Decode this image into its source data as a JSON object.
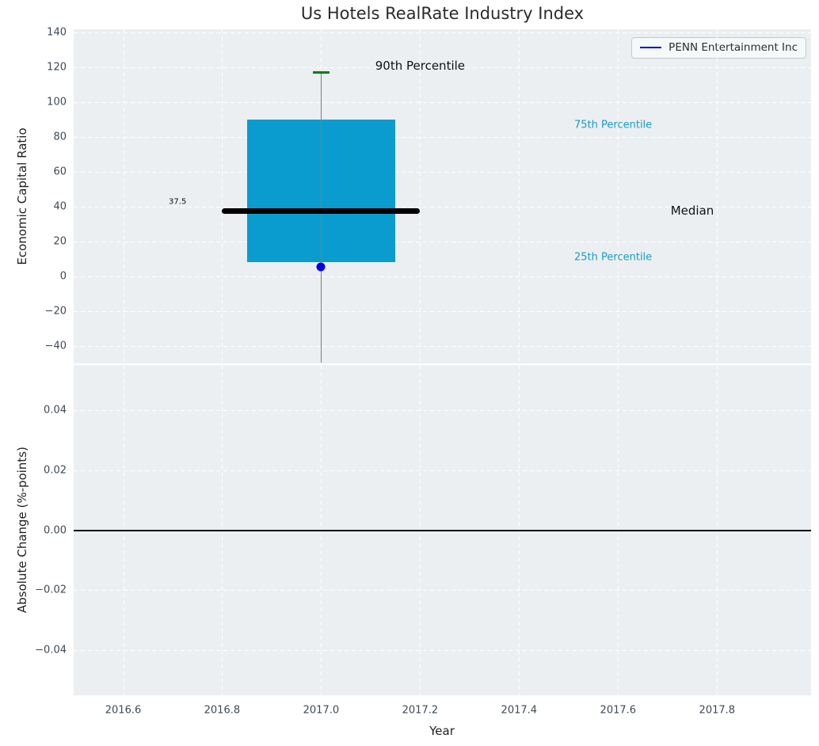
{
  "title": "Us Hotels RealRate Industry Index",
  "legend": {
    "label": "PENN Entertainment Inc",
    "line_color": "#0000dd"
  },
  "colors": {
    "figure_bg": "#ffffff",
    "axes_bg": "#eceff1",
    "grid": "#ffffff",
    "box_fill": "#0a9cce",
    "median_line": "#000000",
    "whisker": "#808080",
    "percentile_cap": "#008000",
    "company_marker": "#0000e0",
    "zero_line": "#000000",
    "tick_text": "#3e4a57",
    "percentile_text": "#1a9bc9"
  },
  "chart_data": [
    {
      "type": "boxplot",
      "title": "Us Hotels RealRate Industry Index",
      "ylabel": "Economic Capital Ratio",
      "xlim": [
        2016.5,
        2017.99
      ],
      "ylim": [
        -50,
        142
      ],
      "yticks": [
        140,
        120,
        100,
        80,
        60,
        40,
        20,
        0,
        -20,
        -40
      ],
      "ytick_labels": [
        "140",
        "120",
        "100",
        "80",
        "60",
        "40",
        "20",
        "0",
        "−20",
        "−40"
      ],
      "grid": true,
      "legend_position": "upper right",
      "legend_entries": [
        "PENN Entertainment Inc"
      ],
      "box": {
        "x": 2017.0,
        "box_halfwidth": 0.15,
        "median_halfwidth": 0.2,
        "cap_halfwidth": 0.0175,
        "q1": 8,
        "q3": 90,
        "median": 37.5,
        "p90": 117,
        "whisker_low": -49.5,
        "company_point": {
          "name": "PENN Entertainment Inc",
          "x": 2017.0,
          "y": 5.5
        }
      },
      "annotations": [
        {
          "text": "90th Percentile",
          "x": 2017.2,
          "y": 121,
          "color": "#111111",
          "size": 15
        },
        {
          "text": "75th Percentile",
          "x": 2017.59,
          "y": 87,
          "color": "#1a9bc9",
          "size": 13
        },
        {
          "text": "Median",
          "x": 2017.75,
          "y": 37.7,
          "color": "#111111",
          "size": 15
        },
        {
          "text": "25th Percentile",
          "x": 2017.59,
          "y": 11,
          "color": "#1a9bc9",
          "size": 13
        },
        {
          "text": "37.5",
          "x": 2016.71,
          "y": 42.7,
          "color": "#111111",
          "size": 10
        }
      ]
    },
    {
      "type": "line",
      "ylabel": "Absolute Change (%-points)",
      "xlabel": "Year",
      "xlim": [
        2016.5,
        2017.99
      ],
      "ylim": [
        -0.055,
        0.055
      ],
      "yticks": [
        0.04,
        0.02,
        0.0,
        -0.02,
        -0.04
      ],
      "ytick_labels": [
        "0.04",
        "0.02",
        "0.00",
        "−0.02",
        "−0.04"
      ],
      "xticks": [
        2016.6,
        2016.8,
        2017.0,
        2017.2,
        2017.4,
        2017.6,
        2017.8
      ],
      "xtick_labels": [
        "2016.6",
        "2016.8",
        "2017.0",
        "2017.2",
        "2017.4",
        "2017.6",
        "2017.8"
      ],
      "grid": true,
      "zero_line": 0.0,
      "series": []
    }
  ]
}
